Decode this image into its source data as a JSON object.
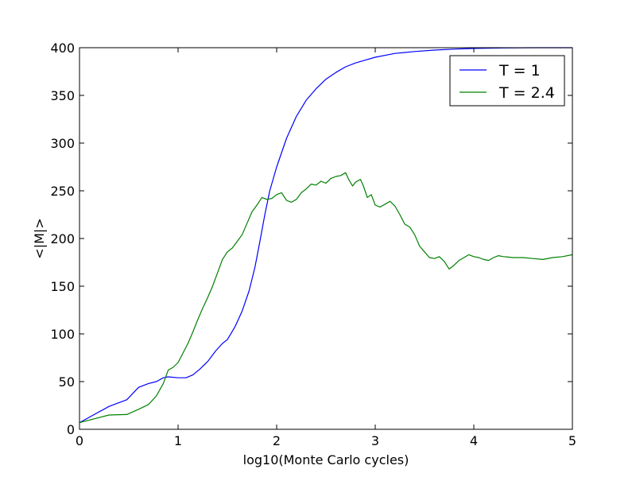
{
  "chart_data": {
    "type": "line",
    "title": "",
    "xlabel": "log10(Monte Carlo cycles)",
    "ylabel": "<|M|>",
    "xlim": [
      0,
      5
    ],
    "ylim": [
      0,
      400
    ],
    "xticks": [
      0,
      1,
      2,
      3,
      4,
      5
    ],
    "yticks": [
      0,
      50,
      100,
      150,
      200,
      250,
      300,
      350,
      400
    ],
    "xtick_labels": [
      "0",
      "1",
      "2",
      "3",
      "4",
      "5"
    ],
    "ytick_labels": [
      "0",
      "50",
      "100",
      "150",
      "200",
      "250",
      "300",
      "350",
      "400"
    ],
    "grid": false,
    "legend_position": "top-right",
    "series": [
      {
        "name": "T = 1",
        "color": "#0000ff",
        "points": [
          [
            0,
            7
          ],
          [
            0.3,
            24
          ],
          [
            0.48,
            31
          ],
          [
            0.6,
            44
          ],
          [
            0.7,
            48
          ],
          [
            0.78,
            50
          ],
          [
            0.85,
            54
          ],
          [
            0.9,
            55
          ],
          [
            1.0,
            54
          ],
          [
            1.08,
            54
          ],
          [
            1.15,
            57
          ],
          [
            1.22,
            63
          ],
          [
            1.3,
            71
          ],
          [
            1.38,
            82
          ],
          [
            1.45,
            90
          ],
          [
            1.5,
            94
          ],
          [
            1.58,
            108
          ],
          [
            1.65,
            124
          ],
          [
            1.72,
            145
          ],
          [
            1.78,
            170
          ],
          [
            1.83,
            197
          ],
          [
            1.88,
            225
          ],
          [
            1.93,
            250
          ],
          [
            2.0,
            275
          ],
          [
            2.1,
            305
          ],
          [
            2.2,
            328
          ],
          [
            2.3,
            345
          ],
          [
            2.4,
            357
          ],
          [
            2.5,
            367
          ],
          [
            2.6,
            374
          ],
          [
            2.7,
            380
          ],
          [
            2.8,
            384
          ],
          [
            2.9,
            387
          ],
          [
            3.0,
            390
          ],
          [
            3.2,
            394
          ],
          [
            3.4,
            396
          ],
          [
            3.6,
            397.5
          ],
          [
            3.8,
            398.5
          ],
          [
            4.0,
            399.3
          ],
          [
            4.3,
            399.8
          ],
          [
            4.6,
            400
          ],
          [
            5.0,
            400
          ]
        ]
      },
      {
        "name": "T = 2.4",
        "color": "#008000",
        "points": [
          [
            0,
            7
          ],
          [
            0.3,
            15
          ],
          [
            0.48,
            15.5
          ],
          [
            0.6,
            21
          ],
          [
            0.7,
            26
          ],
          [
            0.78,
            35
          ],
          [
            0.85,
            48
          ],
          [
            0.9,
            62
          ],
          [
            0.95,
            65
          ],
          [
            1.0,
            70
          ],
          [
            1.05,
            80
          ],
          [
            1.1,
            90
          ],
          [
            1.15,
            102
          ],
          [
            1.2,
            115
          ],
          [
            1.25,
            127
          ],
          [
            1.3,
            138
          ],
          [
            1.35,
            150
          ],
          [
            1.4,
            164
          ],
          [
            1.45,
            178
          ],
          [
            1.5,
            186
          ],
          [
            1.55,
            190
          ],
          [
            1.6,
            197
          ],
          [
            1.65,
            204
          ],
          [
            1.7,
            216
          ],
          [
            1.75,
            228
          ],
          [
            1.8,
            235
          ],
          [
            1.85,
            243
          ],
          [
            1.9,
            241
          ],
          [
            1.95,
            242
          ],
          [
            2.0,
            246
          ],
          [
            2.05,
            248
          ],
          [
            2.1,
            240
          ],
          [
            2.15,
            238
          ],
          [
            2.2,
            241
          ],
          [
            2.25,
            248
          ],
          [
            2.3,
            252
          ],
          [
            2.35,
            257
          ],
          [
            2.4,
            256
          ],
          [
            2.45,
            260
          ],
          [
            2.5,
            258
          ],
          [
            2.55,
            263
          ],
          [
            2.6,
            265
          ],
          [
            2.65,
            266
          ],
          [
            2.7,
            269
          ],
          [
            2.73,
            262
          ],
          [
            2.77,
            255
          ],
          [
            2.8,
            259
          ],
          [
            2.85,
            262
          ],
          [
            2.88,
            255
          ],
          [
            2.92,
            243
          ],
          [
            2.96,
            246
          ],
          [
            3.0,
            235
          ],
          [
            3.05,
            233
          ],
          [
            3.1,
            236
          ],
          [
            3.15,
            239
          ],
          [
            3.2,
            234
          ],
          [
            3.25,
            225
          ],
          [
            3.3,
            215
          ],
          [
            3.35,
            212
          ],
          [
            3.4,
            204
          ],
          [
            3.45,
            192
          ],
          [
            3.5,
            186
          ],
          [
            3.55,
            180
          ],
          [
            3.6,
            179
          ],
          [
            3.65,
            181
          ],
          [
            3.7,
            176
          ],
          [
            3.75,
            168
          ],
          [
            3.8,
            172
          ],
          [
            3.85,
            177
          ],
          [
            3.9,
            180
          ],
          [
            3.95,
            183
          ],
          [
            4.0,
            181
          ],
          [
            4.05,
            180
          ],
          [
            4.1,
            178
          ],
          [
            4.15,
            177
          ],
          [
            4.2,
            180
          ],
          [
            4.25,
            182
          ],
          [
            4.3,
            181
          ],
          [
            4.4,
            180
          ],
          [
            4.5,
            180
          ],
          [
            4.6,
            179
          ],
          [
            4.7,
            178
          ],
          [
            4.8,
            180
          ],
          [
            4.9,
            181
          ],
          [
            5.0,
            183
          ]
        ]
      }
    ]
  }
}
